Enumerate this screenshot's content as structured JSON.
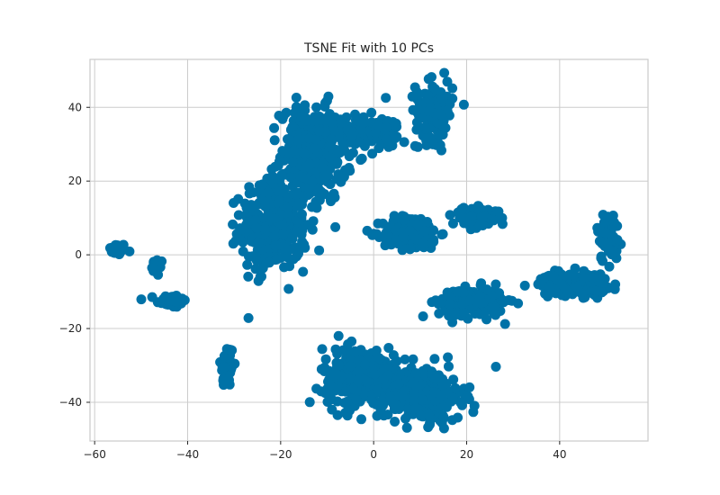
{
  "chart_data": {
    "type": "scatter",
    "title": "TSNE Fit with 10 PCs",
    "xlabel": "",
    "ylabel": "",
    "xlim": [
      -61,
      59
    ],
    "ylim": [
      -50.5,
      53
    ],
    "xticks": [
      -60,
      -40,
      -20,
      0,
      20,
      40
    ],
    "yticks": [
      -40,
      -20,
      0,
      20,
      40
    ],
    "xtick_labels": [
      "−60",
      "−40",
      "−20",
      "0",
      "20",
      "40"
    ],
    "ytick_labels": [
      "−40",
      "−20",
      "0",
      "20",
      "40"
    ],
    "grid": true,
    "legend": "none",
    "point_color": "#0072a7",
    "grid_color": "#cccccc",
    "spine_color": "#cccccc",
    "clusters": [
      {
        "cx": -55,
        "cy": 1.5,
        "sx": 0.9,
        "sy": 0.8,
        "n": 40
      },
      {
        "cx": -46.5,
        "cy": -3.5,
        "sx": 0.6,
        "sy": 1.2,
        "n": 15
      },
      {
        "cx": -43.5,
        "cy": -12.5,
        "sx": 1.6,
        "sy": 0.9,
        "n": 50
      },
      {
        "cx": -31.5,
        "cy": -30,
        "sx": 0.7,
        "sy": 3,
        "n": 60
      },
      {
        "cx": -21.5,
        "cy": 8,
        "sx": 3.5,
        "sy": 6,
        "n": 330
      },
      {
        "cx": -13,
        "cy": 27,
        "sx": 3.5,
        "sy": 6.5,
        "n": 330
      },
      {
        "cx": -4,
        "cy": 34,
        "sx": 4,
        "sy": 2.5,
        "n": 90
      },
      {
        "cx": 3,
        "cy": 33,
        "sx": 1.5,
        "sy": 2.2,
        "n": 30
      },
      {
        "cx": 8,
        "cy": 6,
        "sx": 3,
        "sy": 2.2,
        "n": 220
      },
      {
        "cx": 13,
        "cy": 39,
        "sx": 2,
        "sy": 4,
        "n": 150
      },
      {
        "cx": 22,
        "cy": 10,
        "sx": 2.5,
        "sy": 1.3,
        "n": 100
      },
      {
        "cx": 21,
        "cy": -13,
        "sx": 3.5,
        "sy": 2,
        "n": 180
      },
      {
        "cx": 43,
        "cy": -8,
        "sx": 3.5,
        "sy": 1.5,
        "n": 200
      },
      {
        "cx": 50.5,
        "cy": 5,
        "sx": 1.2,
        "sy": 3.5,
        "n": 60
      },
      {
        "cx": -3,
        "cy": -33,
        "sx": 4,
        "sy": 4,
        "n": 300
      },
      {
        "cx": 10,
        "cy": -38,
        "sx": 4.5,
        "sy": 3.5,
        "n": 300
      }
    ]
  }
}
